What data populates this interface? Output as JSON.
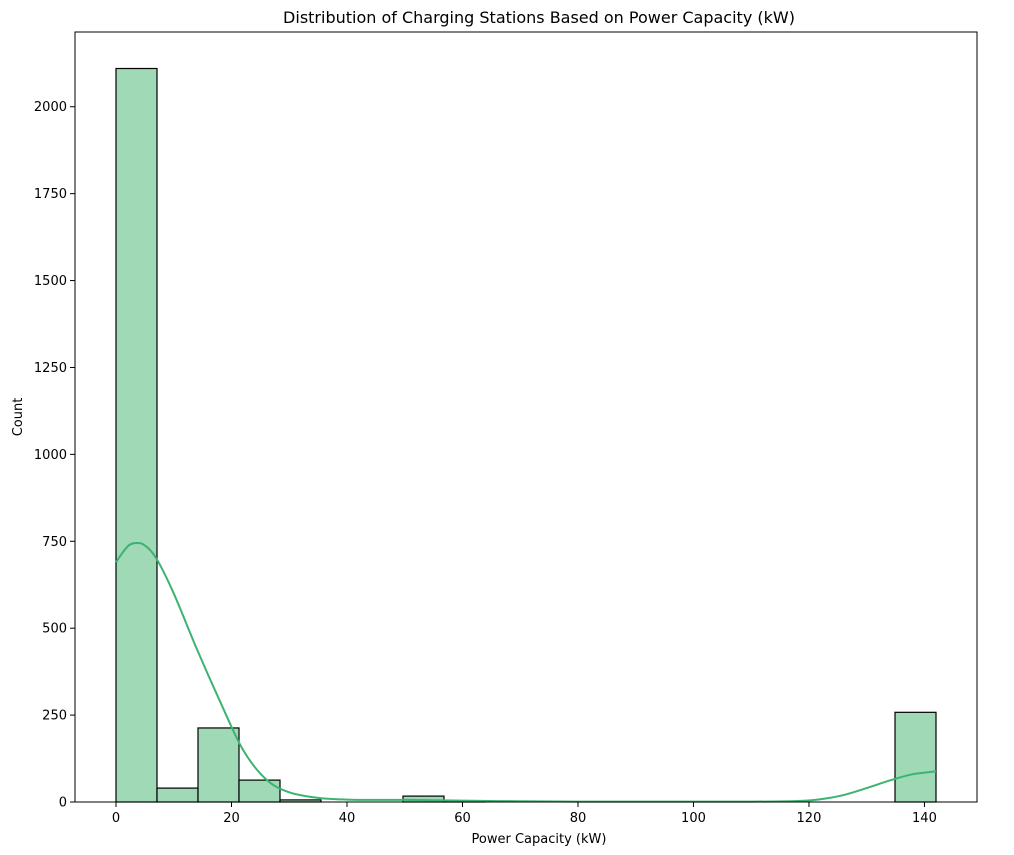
{
  "chart_data": {
    "type": "bar",
    "title": "Distribution of Charging Stations Based on Power Capacity (kW)",
    "xlabel": "Power Capacity (kW)",
    "ylabel": "Count",
    "xlim": [
      -7.1,
      149.1
    ],
    "ylim": [
      0,
      2215
    ],
    "x_ticks": [
      0,
      20,
      40,
      60,
      80,
      100,
      120,
      140
    ],
    "y_ticks": [
      0,
      250,
      500,
      750,
      1000,
      1250,
      1500,
      1750,
      2000
    ],
    "grid": false,
    "bins": [
      {
        "x0": 0,
        "x1": 7.1,
        "count": 2110
      },
      {
        "x0": 7.1,
        "x1": 14.2,
        "count": 40
      },
      {
        "x0": 14.2,
        "x1": 21.3,
        "count": 213
      },
      {
        "x0": 21.3,
        "x1": 28.4,
        "count": 63
      },
      {
        "x0": 28.4,
        "x1": 35.5,
        "count": 6
      },
      {
        "x0": 35.5,
        "x1": 42.6,
        "count": 0
      },
      {
        "x0": 42.6,
        "x1": 49.7,
        "count": 0
      },
      {
        "x0": 49.7,
        "x1": 56.8,
        "count": 17
      },
      {
        "x0": 56.8,
        "x1": 63.9,
        "count": 4
      },
      {
        "x0": 63.9,
        "x1": 71.0,
        "count": 0
      },
      {
        "x0": 71.0,
        "x1": 78.1,
        "count": 0
      },
      {
        "x0": 78.1,
        "x1": 85.2,
        "count": 0
      },
      {
        "x0": 85.2,
        "x1": 92.3,
        "count": 0
      },
      {
        "x0": 92.3,
        "x1": 99.4,
        "count": 0
      },
      {
        "x0": 99.4,
        "x1": 106.5,
        "count": 0
      },
      {
        "x0": 106.5,
        "x1": 113.6,
        "count": 0
      },
      {
        "x0": 113.6,
        "x1": 120.7,
        "count": 0
      },
      {
        "x0": 120.7,
        "x1": 127.8,
        "count": 0
      },
      {
        "x0": 127.8,
        "x1": 134.9,
        "count": 0
      },
      {
        "x0": 134.9,
        "x1": 142.0,
        "count": 258
      }
    ],
    "kde": {
      "x": [
        0,
        2,
        3.5,
        5,
        7,
        10,
        14,
        18,
        22,
        26,
        30,
        35,
        40,
        45,
        50,
        55,
        60,
        70,
        80,
        90,
        100,
        110,
        118,
        122,
        126,
        130,
        134,
        138,
        142
      ],
      "y": [
        690,
        735,
        745,
        738,
        700,
        600,
        440,
        290,
        150,
        65,
        28,
        12,
        7,
        6,
        6,
        5,
        4,
        2,
        1,
        1,
        1,
        1,
        3,
        8,
        20,
        40,
        62,
        80,
        88
      ]
    },
    "colors": {
      "bar_fill": "#9fd9b5",
      "bar_edge": "#000000",
      "kde_line": "#3cb371"
    }
  }
}
